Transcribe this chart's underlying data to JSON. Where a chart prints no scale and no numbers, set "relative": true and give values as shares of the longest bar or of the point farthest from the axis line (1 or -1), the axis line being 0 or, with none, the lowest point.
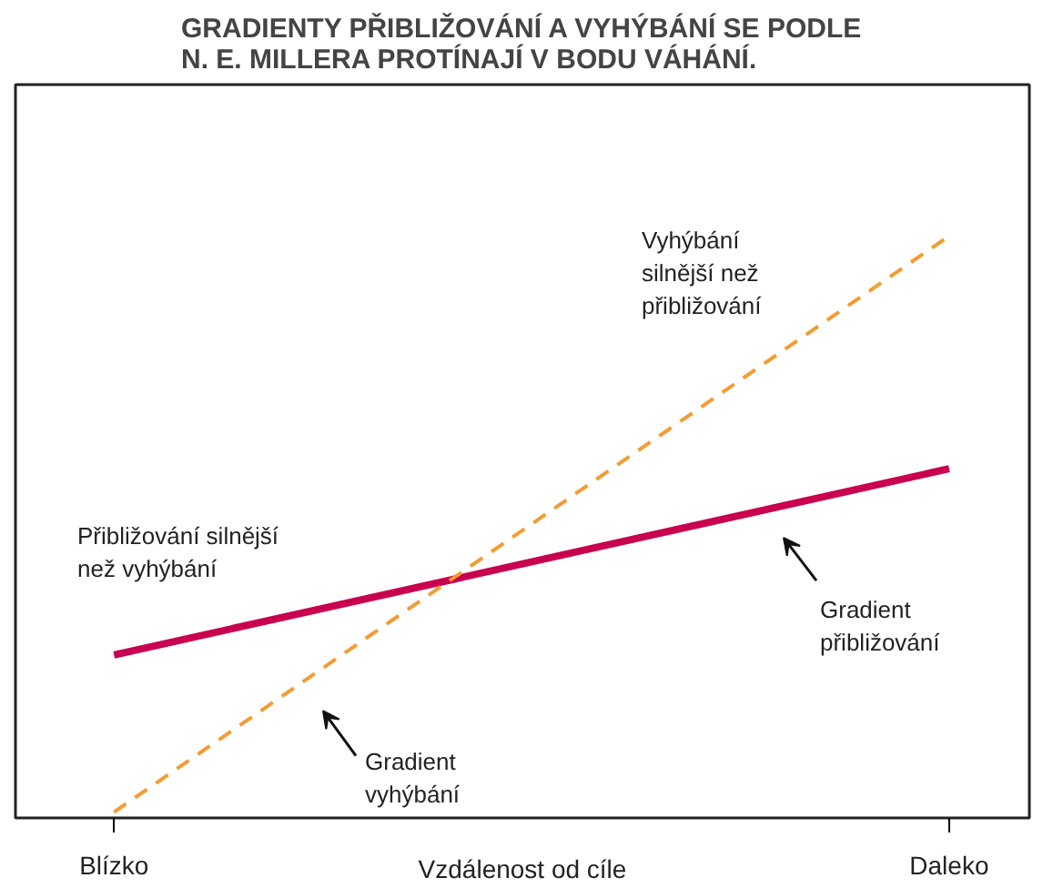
{
  "chart_data": {
    "type": "line",
    "title": "GRADIENTY PŘIBLIŽOVÁNÍ A VYHÝBÁNÍ SE PODLE\nN. E. MILLERA PROTÍNAJÍ V BODU VÁHÁNÍ.",
    "xlabel": "Vzdálenost od cíle",
    "relative": true,
    "categories": [
      "Blízko",
      "Daleko"
    ],
    "series": [
      {
        "color": "#c8004f",
        "values": [
          0.28,
          0.6
        ],
        "line_style": "solid"
      },
      {
        "color": "#f39c34",
        "values": [
          0.01,
          1
        ],
        "line_style": "dashed"
      }
    ],
    "annotations": [
      "Přibližování silnější\nnež vyhýbání",
      "Vyhýbání\nsilnější než\npřibližování",
      "Gradient\npřibližování",
      "Gradient\nvyhýbání"
    ],
    "grid": false,
    "marker": "none"
  }
}
